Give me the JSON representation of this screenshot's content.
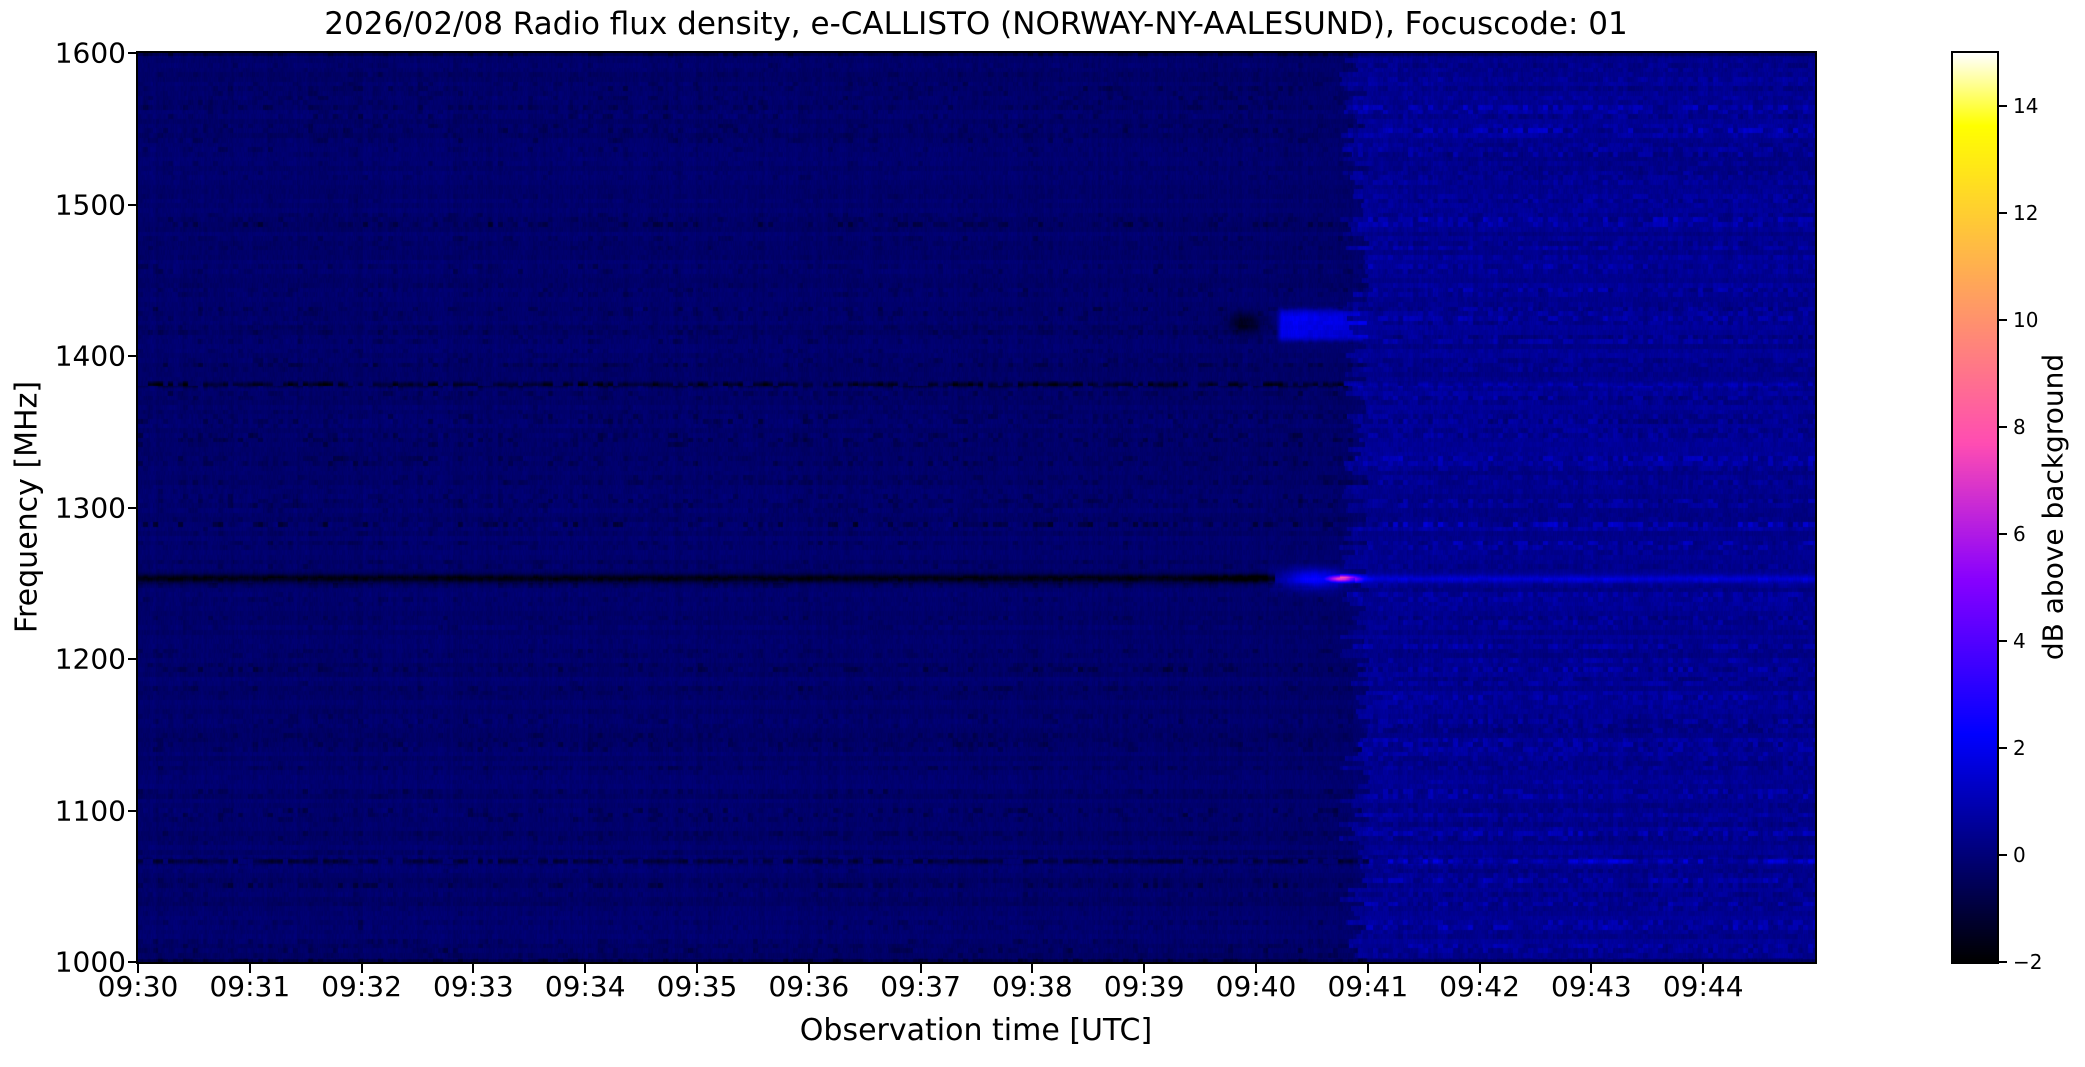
{
  "figure": {
    "background_color": "#ffffff",
    "text_color": "#000000"
  },
  "chart_data": {
    "type": "heatmap",
    "title": "2026/02/08  Radio flux density, e-CALLISTO (NORWAY-NY-AALESUND), Focuscode: 01",
    "date": "2026/02/08",
    "instrument": "e-CALLISTO",
    "station": "NORWAY-NY-AALESUND",
    "focuscode": "01",
    "xlabel": "Observation time [UTC]",
    "ylabel": "Frequency [MHz]",
    "colorbar_label": "dB above background",
    "colormap": "gnuplot2",
    "x_tick_labels": [
      "09:30",
      "09:31",
      "09:32",
      "09:33",
      "09:34",
      "09:35",
      "09:36",
      "09:37",
      "09:38",
      "09:39",
      "09:40",
      "09:41",
      "09:42",
      "09:43",
      "09:44"
    ],
    "time_range_minutes": [
      0,
      15
    ],
    "time_range_utc": [
      "09:30",
      "09:45"
    ],
    "y_ticks_mhz": [
      1600,
      1500,
      1400,
      1300,
      1200,
      1100,
      1000
    ],
    "freq_range_mhz": [
      1000,
      1600
    ],
    "value_range_db": [
      -2,
      15
    ],
    "colorbar_tick_values": [
      14,
      12,
      10,
      8,
      6,
      4,
      2,
      0,
      -2
    ],
    "colorbar_tick_labels": [
      "14",
      "12",
      "10",
      "8",
      "6",
      "4",
      "2",
      "0",
      "−2"
    ],
    "quiet_background_db": -0.2,
    "post_event_background_db": 0.35,
    "mode_change_minute": 10.88,
    "event": {
      "burst_center_minute": 10.76,
      "burst_center_utc": "09:40.8",
      "burst_freq_mhz": 1253,
      "burst_peak_db": 7.4,
      "burst_glow_db": 2.6,
      "block_freq_mhz": 1420.5,
      "block_db": 2.0,
      "block_start_minute": 10.18,
      "dark_smudge_minute": 9.9,
      "dark_smudge_freq_mhz": 1422,
      "dark_smudge_db": -1.4
    },
    "persistent_lines": [
      {
        "freq_mhz": 1253.0,
        "left_db": -1.55,
        "right_db": 1.1,
        "left_end_minute": 10.17
      },
      {
        "freq_mhz": 1381.0,
        "left_db": -0.95,
        "right_db": 0.85
      },
      {
        "freq_mhz": 1066.5,
        "left_db": -0.95,
        "right_db": 1.25
      },
      {
        "freq_mhz": 1419.0,
        "left_db": -0.3,
        "right_db": 0.0
      }
    ],
    "texture_bands": [
      [
        1563,
        6,
        0.35,
        0.75
      ],
      [
        1549,
        5,
        0.4,
        0.9
      ],
      [
        1535,
        4,
        0.25,
        0.55
      ],
      [
        1520,
        5,
        0.2,
        0.6
      ],
      [
        1505,
        4,
        0.15,
        0.4
      ],
      [
        1489,
        6,
        0.3,
        1.0
      ],
      [
        1473,
        4,
        0.2,
        0.6
      ],
      [
        1457,
        4,
        0.3,
        0.45
      ],
      [
        1443,
        5,
        0.45,
        0.6
      ],
      [
        1427,
        6,
        0.35,
        0.65
      ],
      [
        1411,
        4,
        0.25,
        0.5
      ],
      [
        1396,
        4,
        0.3,
        0.45
      ],
      [
        1373,
        4,
        0.3,
        0.7
      ],
      [
        1360,
        5,
        0.45,
        0.5
      ],
      [
        1347,
        4,
        0.3,
        0.45
      ],
      [
        1332,
        4,
        0.25,
        0.75
      ],
      [
        1317,
        4,
        0.3,
        0.45
      ],
      [
        1303,
        5,
        0.5,
        0.65
      ],
      [
        1289,
        5,
        0.55,
        0.7
      ],
      [
        1276,
        4,
        0.35,
        0.5
      ],
      [
        1262,
        3,
        0.3,
        0.4
      ],
      [
        1240,
        4,
        0.25,
        0.45
      ],
      [
        1226,
        4,
        0.2,
        0.55
      ],
      [
        1210,
        4,
        0.15,
        0.35
      ],
      [
        1193,
        4,
        0.15,
        0.35
      ],
      [
        1176,
        4,
        0.2,
        0.4
      ],
      [
        1159,
        5,
        0.35,
        0.6
      ],
      [
        1143,
        6,
        0.5,
        0.85
      ],
      [
        1128,
        5,
        0.35,
        0.5
      ],
      [
        1112,
        4,
        0.3,
        0.4
      ],
      [
        1098,
        6,
        0.55,
        0.5
      ],
      [
        1084,
        5,
        0.35,
        0.45
      ],
      [
        1052,
        4,
        0.4,
        0.5
      ],
      [
        1038,
        4,
        0.2,
        0.45
      ],
      [
        1024,
        4,
        0.25,
        0.5
      ],
      [
        1008,
        5,
        0.4,
        0.7
      ]
    ]
  }
}
